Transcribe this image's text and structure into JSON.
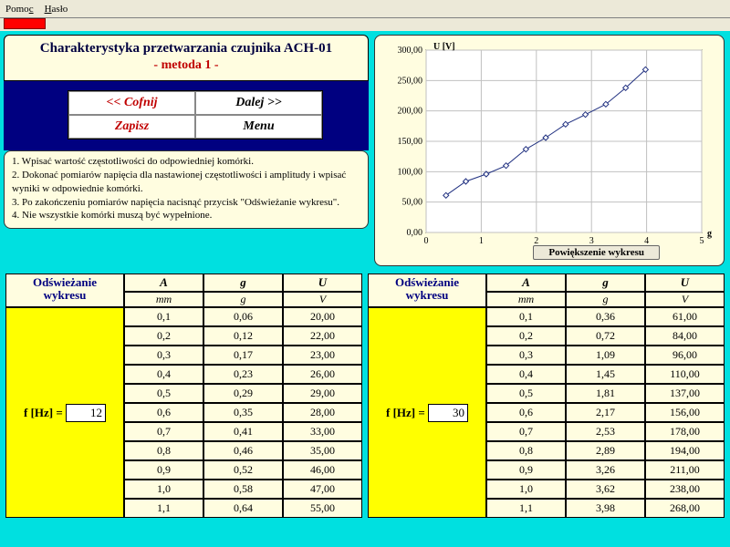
{
  "menu": {
    "item1": "Pomoc",
    "item2": "Hasło",
    "u1": "c",
    "u2": "H"
  },
  "title": {
    "line1": "Charakterystyka przetwarzania czujnika ACH-01",
    "line2": "- metoda 1 -"
  },
  "nav": {
    "back": "<< Cofnij",
    "next": "Dalej >>",
    "save": "Zapisz",
    "menu": "Menu"
  },
  "instructions": {
    "l1": "1. Wpisać wartość częstotliwości do odpowiedniej komórki.",
    "l2": "2. Dokonać pomiarów napięcia dla nastawionej częstotliwości i   amplitudy i wpisać wyniki w odpowiednie komórki.",
    "l3": "3. Po zakończeniu pomiarów napięcia nacisnąć przycisk \"Odświeżanie wykresu\".",
    "l4": "4. Nie wszystkie komórki muszą być wypełnione."
  },
  "chart": {
    "ylabel": "U [V]",
    "xlabel": "g",
    "yticks": [
      "0,00",
      "50,00",
      "100,00",
      "150,00",
      "200,00",
      "250,00",
      "300,00"
    ],
    "xticks": [
      "0",
      "1",
      "2",
      "3",
      "4",
      "5"
    ],
    "ylim": [
      0,
      300
    ],
    "xlim": [
      0,
      5
    ],
    "series_color": "#203080",
    "points": [
      [
        0.36,
        61
      ],
      [
        0.72,
        84
      ],
      [
        1.09,
        96
      ],
      [
        1.45,
        110
      ],
      [
        1.81,
        137
      ],
      [
        2.17,
        156
      ],
      [
        2.53,
        178
      ],
      [
        2.89,
        194
      ],
      [
        3.26,
        211
      ],
      [
        3.62,
        238
      ],
      [
        3.98,
        268
      ]
    ],
    "grid_color": "#c0c0c0",
    "bg": "#ffffff",
    "zoom_label": "Powiększenie wykresu"
  },
  "table_labels": {
    "refresh": "Odświeżanie wykresu",
    "freq_prefix": "f [Hz] = ",
    "col_A": "A",
    "col_g": "g",
    "col_U": "U",
    "unit_mm": "mm",
    "unit_g": "g",
    "unit_V": "V"
  },
  "left_table": {
    "freq": "12",
    "rows": [
      [
        "0,1",
        "0,06",
        "20,00"
      ],
      [
        "0,2",
        "0,12",
        "22,00"
      ],
      [
        "0,3",
        "0,17",
        "23,00"
      ],
      [
        "0,4",
        "0,23",
        "26,00"
      ],
      [
        "0,5",
        "0,29",
        "29,00"
      ],
      [
        "0,6",
        "0,35",
        "28,00"
      ],
      [
        "0,7",
        "0,41",
        "33,00"
      ],
      [
        "0,8",
        "0,46",
        "35,00"
      ],
      [
        "0,9",
        "0,52",
        "46,00"
      ],
      [
        "1,0",
        "0,58",
        "47,00"
      ],
      [
        "1,1",
        "0,64",
        "55,00"
      ]
    ]
  },
  "right_table": {
    "freq": "30",
    "rows": [
      [
        "0,1",
        "0,36",
        "61,00"
      ],
      [
        "0,2",
        "0,72",
        "84,00"
      ],
      [
        "0,3",
        "1,09",
        "96,00"
      ],
      [
        "0,4",
        "1,45",
        "110,00"
      ],
      [
        "0,5",
        "1,81",
        "137,00"
      ],
      [
        "0,6",
        "2,17",
        "156,00"
      ],
      [
        "0,7",
        "2,53",
        "178,00"
      ],
      [
        "0,8",
        "2,89",
        "194,00"
      ],
      [
        "0,9",
        "3,26",
        "211,00"
      ],
      [
        "1,0",
        "3,62",
        "238,00"
      ],
      [
        "1,1",
        "3,98",
        "268,00"
      ]
    ]
  }
}
